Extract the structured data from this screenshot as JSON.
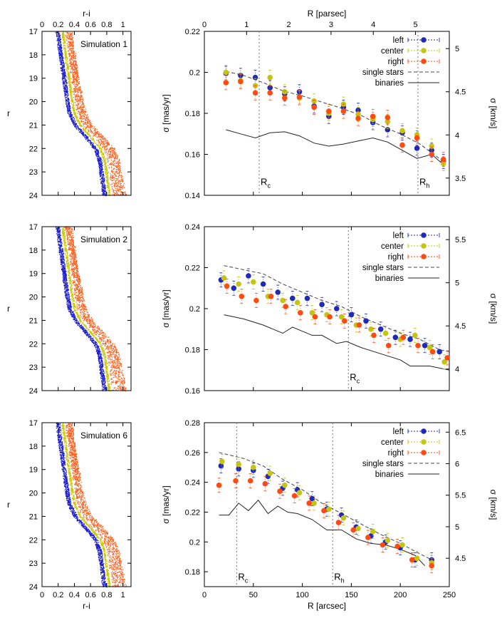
{
  "colors": {
    "left": "#1f2ab8",
    "center": "#c4c413",
    "right": "#ff4a12",
    "single": "#444444",
    "binaries": "#222222",
    "radius_line": "#777777",
    "cmd_blue": "#1a1acc",
    "cmd_yellow": "#c8c800",
    "cmd_red": "#ff5a14"
  },
  "cmd": {
    "top_label": "r-i",
    "bottom_label": "r-i",
    "ylabel": "r",
    "xlim": [
      0,
      1.1
    ],
    "ylim": [
      17,
      24
    ],
    "xticks": [
      "0",
      "0.2",
      "0.4",
      "0.6",
      "0.8",
      "1"
    ],
    "yticks": [
      "17",
      "18",
      "19",
      "20",
      "21",
      "22",
      "23",
      "24"
    ],
    "ridge": [
      [
        0.25,
        17
      ],
      [
        0.27,
        17.5
      ],
      [
        0.29,
        18
      ],
      [
        0.31,
        18.5
      ],
      [
        0.33,
        19
      ],
      [
        0.35,
        19.5
      ],
      [
        0.37,
        20
      ],
      [
        0.4,
        20.5
      ],
      [
        0.47,
        21
      ],
      [
        0.6,
        21.5
      ],
      [
        0.72,
        22
      ],
      [
        0.77,
        22.5
      ],
      [
        0.79,
        23
      ],
      [
        0.81,
        23.5
      ],
      [
        0.83,
        24
      ]
    ]
  },
  "chart_data": [
    {
      "type": "scatter",
      "cmd_title": "Simulation 1",
      "x_top_label": "R [parsec]",
      "xlabel": "",
      "ylabel": "σ [mas/yr]",
      "y2label": "σ [km/s]",
      "xlim": [
        0,
        250
      ],
      "ylim": [
        0.14,
        0.22
      ],
      "y2lim": [
        3.3,
        5.2
      ],
      "x_top_range": [
        0,
        5.8
      ],
      "x_top_ticks": [
        "0",
        "1",
        "2",
        "3",
        "4",
        "5"
      ],
      "yticks": [
        "0.14",
        "0.16",
        "0.18",
        "0.2",
        "0.22"
      ],
      "y2ticks": [
        "3.5",
        "4",
        "4.5",
        "5"
      ],
      "legend": [
        "left",
        "center",
        "right",
        "single stars",
        "binaries"
      ],
      "annotations": [
        {
          "name": "rc",
          "base": "R",
          "sub": "c",
          "x": 56,
          "label_y": 0.145
        },
        {
          "name": "rh",
          "base": "R",
          "sub": "h",
          "x": 218,
          "label_y": 0.145
        }
      ],
      "series": [
        {
          "name": "left",
          "x": [
            22,
            37,
            52,
            67,
            82,
            97,
            112,
            127,
            142,
            157,
            172,
            187,
            202,
            217,
            232,
            244
          ],
          "y": [
            0.1995,
            0.1985,
            0.1975,
            0.1925,
            0.1895,
            0.1905,
            0.1835,
            0.1785,
            0.183,
            0.1815,
            0.1755,
            0.172,
            0.1705,
            0.163,
            0.162,
            0.1565
          ]
        },
        {
          "name": "center",
          "x": [
            22,
            37,
            52,
            67,
            82,
            97,
            112,
            127,
            142,
            157,
            172,
            187,
            202,
            217,
            232,
            244
          ],
          "y": [
            0.2,
            0.196,
            0.1935,
            0.1975,
            0.1905,
            0.1875,
            0.186,
            0.18,
            0.1845,
            0.1795,
            0.177,
            0.176,
            0.1715,
            0.1695,
            0.164,
            0.1555
          ]
        },
        {
          "name": "right",
          "x": [
            22,
            37,
            52,
            67,
            82,
            97,
            112,
            127,
            142,
            157,
            172,
            187,
            202,
            217,
            232,
            244
          ],
          "y": [
            0.195,
            0.1955,
            0.19,
            0.19,
            0.1875,
            0.188,
            0.183,
            0.181,
            0.181,
            0.1775,
            0.1785,
            0.178,
            0.1645,
            0.168,
            0.16,
            0.1575
          ]
        },
        {
          "name": "single stars",
          "x": [
            22,
            40,
            60,
            80,
            100,
            120,
            140,
            160,
            180,
            200,
            220,
            244
          ],
          "y": [
            0.2005,
            0.1985,
            0.195,
            0.191,
            0.1885,
            0.1855,
            0.1825,
            0.179,
            0.174,
            0.17,
            0.165,
            0.1565
          ]
        },
        {
          "name": "binaries",
          "x": [
            22,
            37,
            52,
            67,
            82,
            97,
            112,
            127,
            142,
            157,
            172,
            187,
            202,
            217,
            232,
            244
          ],
          "y": [
            0.172,
            0.17,
            0.168,
            0.1705,
            0.171,
            0.169,
            0.1655,
            0.164,
            0.165,
            0.1665,
            0.168,
            0.166,
            0.162,
            0.158,
            0.16,
            0.155
          ]
        }
      ]
    },
    {
      "type": "scatter",
      "cmd_title": "Simulation 2",
      "xlabel": "",
      "ylabel": "σ [mas/yr]",
      "y2label": "σ [km/s]",
      "xlim": [
        0,
        250
      ],
      "ylim": [
        0.16,
        0.24
      ],
      "y2lim": [
        3.75,
        5.65
      ],
      "yticks": [
        "0.16",
        "0.18",
        "0.2",
        "0.22",
        "0.24"
      ],
      "y2ticks": [
        "4",
        "4.5",
        "5",
        "5.5"
      ],
      "legend": [
        "left",
        "center",
        "right",
        "single stars",
        "binaries"
      ],
      "annotations": [
        {
          "name": "rc",
          "base": "R",
          "sub": "c",
          "x": 147,
          "label_y": 0.165
        }
      ],
      "series": [
        {
          "name": "left",
          "x": [
            17,
            30,
            45,
            60,
            75,
            90,
            105,
            120,
            135,
            150,
            165,
            180,
            195,
            210,
            225,
            240
          ],
          "y": [
            0.214,
            0.21,
            0.216,
            0.212,
            0.208,
            0.205,
            0.205,
            0.202,
            0.2,
            0.197,
            0.194,
            0.19,
            0.186,
            0.185,
            0.182,
            0.179
          ]
        },
        {
          "name": "center",
          "x": [
            20,
            35,
            50,
            65,
            80,
            95,
            110,
            125,
            140,
            155,
            170,
            185,
            200,
            215,
            230,
            245
          ],
          "y": [
            0.215,
            0.212,
            0.213,
            0.206,
            0.204,
            0.203,
            0.198,
            0.197,
            0.196,
            0.192,
            0.19,
            0.188,
            0.185,
            0.187,
            0.181,
            0.174
          ]
        },
        {
          "name": "right",
          "x": [
            23,
            38,
            53,
            68,
            83,
            98,
            113,
            128,
            143,
            158,
            173,
            188,
            203,
            218,
            233,
            248
          ],
          "y": [
            0.211,
            0.206,
            0.204,
            0.206,
            0.201,
            0.198,
            0.196,
            0.196,
            0.194,
            0.192,
            0.187,
            0.182,
            0.186,
            0.182,
            0.179,
            0.176
          ]
        },
        {
          "name": "single stars",
          "x": [
            20,
            40,
            60,
            80,
            100,
            120,
            140,
            160,
            180,
            200,
            220,
            240,
            250
          ],
          "y": [
            0.221,
            0.219,
            0.217,
            0.212,
            0.208,
            0.204,
            0.201,
            0.196,
            0.192,
            0.188,
            0.185,
            0.18,
            0.179
          ]
        },
        {
          "name": "binaries",
          "x": [
            20,
            40,
            60,
            80,
            90,
            110,
            120,
            135,
            145,
            160,
            180,
            200,
            210,
            230,
            250
          ],
          "y": [
            0.197,
            0.195,
            0.192,
            0.188,
            0.191,
            0.187,
            0.187,
            0.183,
            0.184,
            0.181,
            0.178,
            0.175,
            0.172,
            0.172,
            0.17
          ]
        }
      ]
    },
    {
      "type": "scatter",
      "cmd_title": "Simulation 6",
      "xlabel": "R [arcsec]",
      "ylabel": "σ [mas/yr]",
      "y2label": "σ [km/s]",
      "xlim": [
        0,
        250
      ],
      "ylim": [
        0.17,
        0.28
      ],
      "y2lim": [
        4.05,
        6.65
      ],
      "xticks": [
        "0",
        "50",
        "100",
        "150",
        "200",
        "250"
      ],
      "yticks": [
        "0.18",
        "0.2",
        "0.22",
        "0.24",
        "0.26",
        "0.28"
      ],
      "y2ticks": [
        "4.5",
        "5",
        "5.5",
        "6",
        "6.5"
      ],
      "legend": [
        "left",
        "center",
        "right",
        "single stars",
        "binaries"
      ],
      "annotations": [
        {
          "name": "rc",
          "base": "R",
          "sub": "c",
          "x": 33,
          "label_y": 0.1745
        },
        {
          "name": "rh",
          "base": "R",
          "sub": "h",
          "x": 131,
          "label_y": 0.1745
        }
      ],
      "series": [
        {
          "name": "left",
          "x": [
            17,
            35,
            50,
            65,
            80,
            95,
            110,
            125,
            140,
            155,
            170,
            185,
            200,
            215,
            232
          ],
          "y": [
            0.251,
            0.249,
            0.248,
            0.244,
            0.236,
            0.235,
            0.229,
            0.222,
            0.218,
            0.21,
            0.204,
            0.2,
            0.196,
            0.188,
            0.188
          ]
        },
        {
          "name": "center",
          "x": [
            18,
            35,
            50,
            67,
            82,
            97,
            112,
            127,
            142,
            157,
            172,
            187,
            202,
            217,
            232
          ],
          "y": [
            0.254,
            0.252,
            0.25,
            0.246,
            0.238,
            0.233,
            0.226,
            0.222,
            0.216,
            0.209,
            0.207,
            0.201,
            0.198,
            0.189,
            0.186
          ]
        },
        {
          "name": "right",
          "x": [
            15,
            32,
            47,
            62,
            77,
            92,
            107,
            122,
            137,
            152,
            167,
            182,
            197,
            212,
            232
          ],
          "y": [
            0.238,
            0.241,
            0.241,
            0.239,
            0.234,
            0.231,
            0.226,
            0.221,
            0.213,
            0.208,
            0.203,
            0.198,
            0.197,
            0.188,
            0.184
          ]
        },
        {
          "name": "single stars",
          "x": [
            15,
            40,
            60,
            80,
            100,
            120,
            140,
            160,
            180,
            200,
            220,
            232
          ],
          "y": [
            0.26,
            0.256,
            0.251,
            0.242,
            0.235,
            0.226,
            0.219,
            0.212,
            0.205,
            0.199,
            0.192,
            0.188
          ]
        },
        {
          "name": "binaries",
          "x": [
            15,
            25,
            35,
            45,
            55,
            65,
            75,
            85,
            95,
            110,
            125,
            140,
            155,
            170,
            185,
            200,
            215,
            225
          ],
          "y": [
            0.218,
            0.218,
            0.226,
            0.221,
            0.228,
            0.219,
            0.224,
            0.22,
            0.219,
            0.215,
            0.208,
            0.208,
            0.202,
            0.199,
            0.198,
            0.195,
            0.191,
            0.184
          ]
        }
      ]
    }
  ]
}
